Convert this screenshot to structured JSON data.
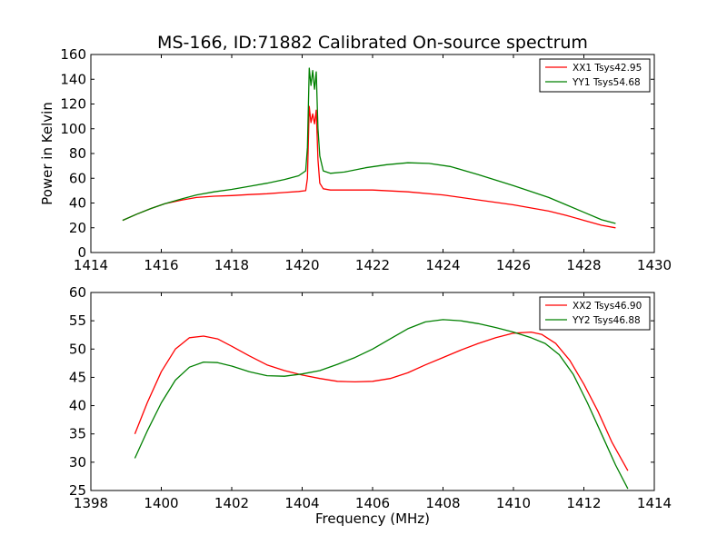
{
  "title": "MS-166, ID:71882 Calibrated On-source spectrum",
  "chart_data": [
    {
      "type": "line",
      "ylabel": "Power in Kelvin",
      "xlabel": "",
      "xlim": [
        1414,
        1430
      ],
      "ylim": [
        0,
        160
      ],
      "xticks": [
        "1414",
        "1416",
        "1418",
        "1420",
        "1422",
        "1424",
        "1426",
        "1428",
        "1430"
      ],
      "yticks": [
        "0",
        "20",
        "40",
        "60",
        "80",
        "100",
        "120",
        "140",
        "160"
      ],
      "legend_position": "top-right",
      "grid": false,
      "series": [
        {
          "name": "XX1 Tsys42.95",
          "color": "#ff0000",
          "x": [
            1414.9,
            1415.3,
            1415.7,
            1416.1,
            1416.6,
            1417.0,
            1417.5,
            1418.0,
            1418.5,
            1419.0,
            1419.5,
            1419.9,
            1420.1,
            1420.15,
            1420.2,
            1420.25,
            1420.3,
            1420.35,
            1420.4,
            1420.45,
            1420.5,
            1420.6,
            1420.8,
            1421.2,
            1422.0,
            1423.0,
            1424.0,
            1425.0,
            1426.0,
            1427.0,
            1427.5,
            1428.0,
            1428.5,
            1428.9
          ],
          "y": [
            26,
            31,
            35.5,
            39.5,
            42.5,
            44.5,
            45.5,
            46,
            46.8,
            47.5,
            48.5,
            49.3,
            50,
            60,
            118,
            105,
            112,
            104,
            115,
            75,
            56,
            51.5,
            50.5,
            50.5,
            50.5,
            49,
            46.5,
            42.5,
            38.5,
            33.5,
            30,
            26,
            22,
            20
          ]
        },
        {
          "name": "YY1 Tsys54.68",
          "color": "#008000",
          "x": [
            1414.9,
            1415.3,
            1415.7,
            1416.1,
            1416.6,
            1417.0,
            1417.5,
            1418.0,
            1418.5,
            1419.0,
            1419.5,
            1419.9,
            1420.1,
            1420.15,
            1420.2,
            1420.25,
            1420.3,
            1420.35,
            1420.4,
            1420.45,
            1420.5,
            1420.6,
            1420.8,
            1421.2,
            1421.8,
            1422.4,
            1423.0,
            1423.6,
            1424.2,
            1425.0,
            1426.0,
            1427.0,
            1427.5,
            1428.0,
            1428.5,
            1428.9
          ],
          "y": [
            26,
            31,
            35.5,
            39.5,
            43.5,
            46.5,
            49,
            51,
            53.5,
            56,
            59,
            62,
            66,
            85,
            149,
            135,
            147,
            132,
            146,
            100,
            78,
            66,
            64,
            65,
            68.5,
            71,
            72.5,
            72,
            69.5,
            63,
            54,
            44.5,
            38.5,
            32.5,
            26.5,
            23.5
          ]
        }
      ]
    },
    {
      "type": "line",
      "ylabel": "",
      "xlabel": "Frequency (MHz)",
      "xlim": [
        1398,
        1414
      ],
      "ylim": [
        25,
        60
      ],
      "xticks": [
        "1398",
        "1400",
        "1402",
        "1404",
        "1406",
        "1408",
        "1410",
        "1412",
        "1414"
      ],
      "yticks": [
        "25",
        "30",
        "35",
        "40",
        "45",
        "50",
        "55",
        "60"
      ],
      "legend_position": "top-right",
      "grid": false,
      "series": [
        {
          "name": "XX2 Tsys46.90",
          "color": "#ff0000",
          "x": [
            1399.25,
            1399.6,
            1400.0,
            1400.4,
            1400.8,
            1401.2,
            1401.6,
            1402.0,
            1402.5,
            1403.0,
            1403.5,
            1404.0,
            1404.5,
            1405.0,
            1405.5,
            1406.0,
            1406.5,
            1407.0,
            1407.5,
            1408.0,
            1408.5,
            1409.0,
            1409.5,
            1410.0,
            1410.5,
            1410.8,
            1411.2,
            1411.6,
            1412.0,
            1412.4,
            1412.8,
            1413.25
          ],
          "y": [
            35,
            40.5,
            46,
            50,
            52,
            52.3,
            51.8,
            50.5,
            48.8,
            47.2,
            46.2,
            45.4,
            44.8,
            44.3,
            44.2,
            44.3,
            44.8,
            45.8,
            47.2,
            48.5,
            49.8,
            51,
            52,
            52.8,
            53,
            52.6,
            51,
            48,
            43.8,
            39,
            33.5,
            28.5
          ]
        },
        {
          "name": "YY2 Tsys46.88",
          "color": "#008000",
          "x": [
            1399.25,
            1399.6,
            1400.0,
            1400.4,
            1400.8,
            1401.2,
            1401.6,
            1402.0,
            1402.5,
            1403.0,
            1403.5,
            1404.0,
            1404.5,
            1405.0,
            1405.5,
            1406.0,
            1406.5,
            1407.0,
            1407.5,
            1408.0,
            1408.5,
            1409.0,
            1409.5,
            1410.0,
            1410.5,
            1410.9,
            1411.3,
            1411.7,
            1412.1,
            1412.5,
            1412.9,
            1413.25
          ],
          "y": [
            30.7,
            35.5,
            40.5,
            44.5,
            46.8,
            47.7,
            47.6,
            47,
            46,
            45.3,
            45.2,
            45.6,
            46.2,
            47.3,
            48.5,
            50,
            51.8,
            53.6,
            54.8,
            55.2,
            55,
            54.5,
            53.8,
            53,
            52,
            51,
            49,
            45.5,
            40.5,
            35,
            29.5,
            25.3
          ]
        }
      ]
    }
  ]
}
